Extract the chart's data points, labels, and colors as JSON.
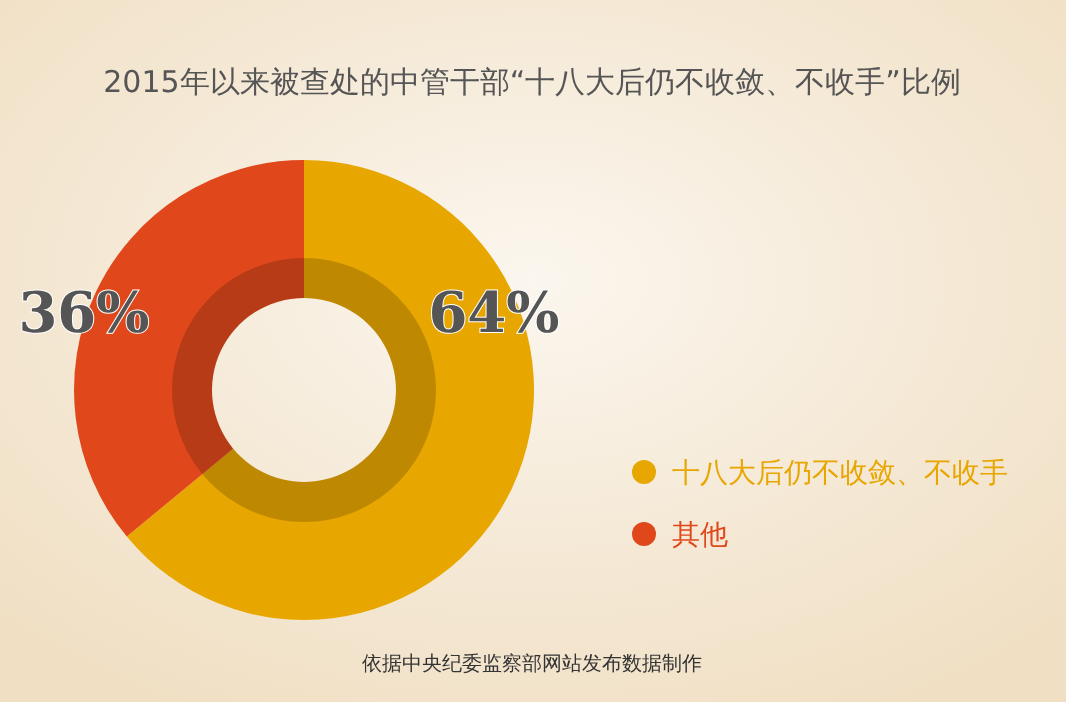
{
  "chart_data": {
    "type": "donut",
    "title": "2015年以来被查处的中管干部“十八大后仍不收敛、不收手”比例",
    "categories": [
      "十八大后仍不收敛、不收手",
      "其他"
    ],
    "values": [
      64,
      36
    ],
    "colors": [
      "#e8a600",
      "#e0481c"
    ],
    "value_labels": [
      "64%",
      "36%"
    ],
    "legend": "right",
    "annotations": [
      "依据中央纪委监察部网站发布数据制作"
    ]
  }
}
